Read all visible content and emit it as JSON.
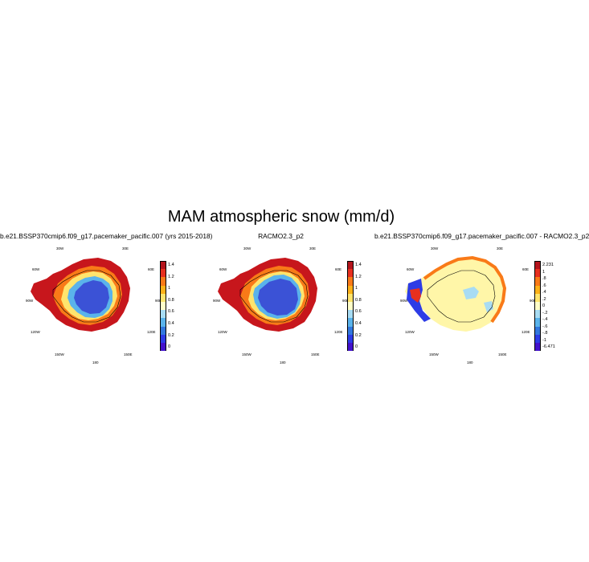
{
  "title": "MAM atmospheric snow (mm/d)",
  "panels": [
    {
      "title": "b.e21.BSSP370cmip6.f09_g17.pacemaker_pacific.007 (yrs 2015-2018)",
      "colors": [
        "#b4141c",
        "#e7301f",
        "#f97a18",
        "#fdb219",
        "#ffe46d",
        "#fffec8",
        "#a8dcf3",
        "#5ab3eb",
        "#3277de",
        "#2d3ce6",
        "#4312cc"
      ],
      "ticks": [
        "1.4",
        "1.2",
        "1",
        "0.8",
        "0.6",
        "0.4",
        "0.2",
        "0"
      ],
      "lon_labels": {
        "l1": "30W",
        "l2": "30E",
        "l3": "60W",
        "l4": "60E",
        "l5": "90W",
        "l6": "90E",
        "l7": "120W",
        "l8": "120E",
        "l9": "150W",
        "l10": "150E",
        "l11": "180"
      }
    },
    {
      "title": "RACMO2.3_p2",
      "colors": [
        "#b4141c",
        "#e7301f",
        "#f97a18",
        "#fdb219",
        "#ffe46d",
        "#fffec8",
        "#a8dcf3",
        "#5ab3eb",
        "#3277de",
        "#2d3ce6",
        "#4312cc"
      ],
      "ticks": [
        "1.4",
        "1.2",
        "1",
        "0.8",
        "0.6",
        "0.4",
        "0.2",
        "0"
      ],
      "lon_labels": {
        "l1": "30W",
        "l2": "30E",
        "l3": "60W",
        "l4": "60E",
        "l5": "90W",
        "l6": "90E",
        "l7": "120W",
        "l8": "120E",
        "l9": "150W",
        "l10": "150E",
        "l11": "180"
      }
    },
    {
      "title": "b.e21.BSSP370cmip6.f09_g17.pacemaker_pacific.007 - RACMO2.3_p2",
      "colors": [
        "#b4141c",
        "#e7301f",
        "#f97a18",
        "#fdb219",
        "#ffe46d",
        "#fffec8",
        "#a8dcf3",
        "#5ab3eb",
        "#3277de",
        "#2d3ce6",
        "#4312cc"
      ],
      "ticks": [
        "2.231",
        "1",
        ".8",
        ".6",
        ".4",
        ".2",
        "0",
        "-.2",
        "-.4",
        "-.6",
        "-.8",
        "-1",
        "-6.471"
      ],
      "lon_labels": {
        "l1": "30W",
        "l2": "30E",
        "l3": "60W",
        "l4": "60E",
        "l5": "90W",
        "l6": "90E",
        "l7": "120W",
        "l8": "120E",
        "l9": "150W",
        "l10": "150E",
        "l11": "180"
      }
    }
  ]
}
